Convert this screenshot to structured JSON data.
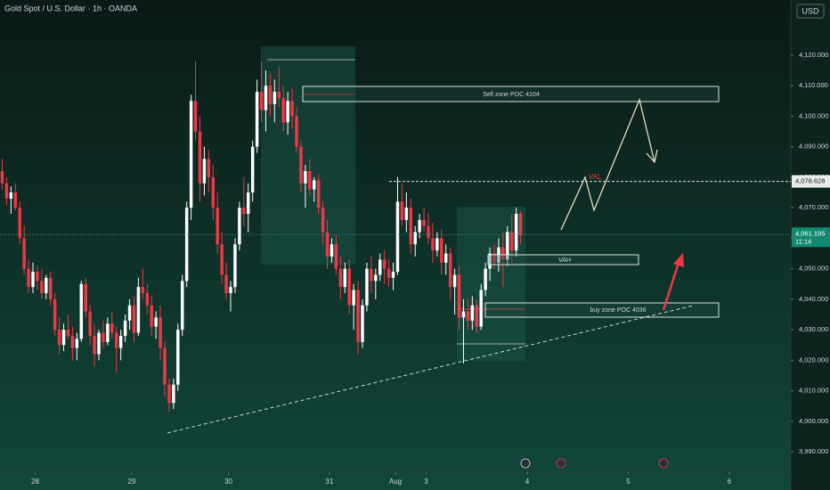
{
  "chart_data": {
    "type": "candlestick",
    "title": "Gold Spot / U.S. Dollar · 1h · OANDA",
    "currency": "USD",
    "up_color": "#ffffff",
    "down_color": "#f23645",
    "ohlc": [
      [
        4082,
        4086,
        4076,
        4078
      ],
      [
        4078,
        4080,
        4071,
        4073
      ],
      [
        4073,
        4077,
        4068,
        4075
      ],
      [
        4075,
        4078,
        4069,
        4070
      ],
      [
        4070,
        4072,
        4058,
        4060
      ],
      [
        4060,
        4064,
        4048,
        4050
      ],
      [
        4050,
        4053,
        4042,
        4044
      ],
      [
        4044,
        4052,
        4042,
        4049
      ],
      [
        4049,
        4051,
        4043,
        4046
      ],
      [
        4046,
        4050,
        4040,
        4042
      ],
      [
        4042,
        4048,
        4040,
        4047
      ],
      [
        4047,
        4049,
        4038,
        4040
      ],
      [
        4040,
        4042,
        4028,
        4030
      ],
      [
        4030,
        4034,
        4022,
        4025
      ],
      [
        4025,
        4032,
        4023,
        4030
      ],
      [
        4030,
        4035,
        4027,
        4028
      ],
      [
        4028,
        4031,
        4020,
        4024
      ],
      [
        4024,
        4029,
        4020,
        4027
      ],
      [
        4027,
        4046,
        4026,
        4045
      ],
      [
        4045,
        4047,
        4034,
        4036
      ],
      [
        4036,
        4038,
        4025,
        4028
      ],
      [
        4028,
        4032,
        4018,
        4022
      ],
      [
        4022,
        4030,
        4020,
        4029
      ],
      [
        4029,
        4033,
        4024,
        4026
      ],
      [
        4026,
        4034,
        4025,
        4032
      ],
      [
        4032,
        4036,
        4027,
        4029
      ],
      [
        4029,
        4031,
        4016,
        4024
      ],
      [
        4024,
        4030,
        4020,
        4028
      ],
      [
        4028,
        4035,
        4026,
        4033
      ],
      [
        4033,
        4040,
        4030,
        4038
      ],
      [
        4038,
        4041,
        4026,
        4029
      ],
      [
        4029,
        4047,
        4028,
        4044
      ],
      [
        4044,
        4050,
        4040,
        4042
      ],
      [
        4042,
        4045,
        4035,
        4038
      ],
      [
        4038,
        4041,
        4028,
        4031
      ],
      [
        4031,
        4036,
        4027,
        4034
      ],
      [
        4034,
        4038,
        4020,
        4024
      ],
      [
        4024,
        4026,
        4008,
        4012
      ],
      [
        4012,
        4014,
        4003,
        4006
      ],
      [
        4006,
        4014,
        4004,
        4012
      ],
      [
        4012,
        4032,
        4010,
        4030
      ],
      [
        4030,
        4048,
        4028,
        4046
      ],
      [
        4046,
        4072,
        4044,
        4070
      ],
      [
        4070,
        4107,
        4066,
        4105
      ],
      [
        4105,
        4118,
        4092,
        4095
      ],
      [
        4095,
        4100,
        4072,
        4078
      ],
      [
        4078,
        4090,
        4074,
        4086
      ],
      [
        4086,
        4089,
        4075,
        4080
      ],
      [
        4080,
        4084,
        4066,
        4070
      ],
      [
        4070,
        4075,
        4055,
        4058
      ],
      [
        4058,
        4062,
        4045,
        4048
      ],
      [
        4048,
        4052,
        4040,
        4042
      ],
      [
        4042,
        4046,
        4036,
        4044
      ],
      [
        4044,
        4060,
        4042,
        4058
      ],
      [
        4058,
        4072,
        4056,
        4070
      ],
      [
        4070,
        4080,
        4064,
        4068
      ],
      [
        4068,
        4078,
        4062,
        4075
      ],
      [
        4075,
        4092,
        4072,
        4090
      ],
      [
        4090,
        4112,
        4088,
        4108
      ],
      [
        4108,
        4118,
        4098,
        4102
      ],
      [
        4102,
        4115,
        4095,
        4110
      ],
      [
        4110,
        4114,
        4100,
        4104
      ],
      [
        4104,
        4112,
        4098,
        4108
      ],
      [
        4108,
        4116,
        4103,
        4106
      ],
      [
        4106,
        4110,
        4095,
        4098
      ],
      [
        4098,
        4108,
        4094,
        4105
      ],
      [
        4105,
        4109,
        4096,
        4100
      ],
      [
        4100,
        4103,
        4088,
        4090
      ],
      [
        4090,
        4092,
        4075,
        4078
      ],
      [
        4078,
        4084,
        4070,
        4082
      ],
      [
        4082,
        4086,
        4074,
        4076
      ],
      [
        4076,
        4080,
        4072,
        4079
      ],
      [
        4079,
        4081,
        4068,
        4070
      ],
      [
        4070,
        4072,
        4058,
        4062
      ],
      [
        4062,
        4066,
        4050,
        4054
      ],
      [
        4054,
        4060,
        4052,
        4058
      ],
      [
        4058,
        4061,
        4048,
        4050
      ],
      [
        4050,
        4054,
        4040,
        4044
      ],
      [
        4044,
        4052,
        4042,
        4050
      ],
      [
        4050,
        4053,
        4035,
        4038
      ],
      [
        4038,
        4045,
        4030,
        4043
      ],
      [
        4043,
        4046,
        4022,
        4026
      ],
      [
        4026,
        4040,
        4024,
        4038
      ],
      [
        4038,
        4052,
        4036,
        4050
      ],
      [
        4050,
        4054,
        4042,
        4046
      ],
      [
        4046,
        4050,
        4040,
        4048
      ],
      [
        4048,
        4055,
        4046,
        4053
      ],
      [
        4053,
        4056,
        4045,
        4050
      ],
      [
        4050,
        4053,
        4044,
        4047
      ],
      [
        4047,
        4052,
        4043,
        4049
      ],
      [
        4049,
        4080,
        4048,
        4072
      ],
      [
        4072,
        4078,
        4064,
        4066
      ],
      [
        4066,
        4075,
        4062,
        4070
      ],
      [
        4070,
        4073,
        4055,
        4058
      ],
      [
        4058,
        4064,
        4054,
        4062
      ],
      [
        4062,
        4068,
        4060,
        4066
      ],
      [
        4066,
        4070,
        4062,
        4064
      ],
      [
        4064,
        4068,
        4058,
        4060
      ],
      [
        4060,
        4065,
        4052,
        4056
      ],
      [
        4056,
        4062,
        4054,
        4060
      ],
      [
        4060,
        4063,
        4048,
        4052
      ],
      [
        4052,
        4058,
        4048,
        4055
      ],
      [
        4055,
        4057,
        4040,
        4044
      ],
      [
        4044,
        4050,
        4035,
        4048
      ],
      [
        4048,
        4051,
        4030,
        4034
      ],
      [
        4034,
        4040,
        4019,
        4036
      ],
      [
        4036,
        4040,
        4030,
        4033
      ],
      [
        4033,
        4041,
        4030,
        4038
      ],
      [
        4038,
        4040,
        4029,
        4031
      ],
      [
        4031,
        4045,
        4030,
        4043
      ],
      [
        4043,
        4052,
        4041,
        4050
      ],
      [
        4050,
        4057,
        4046,
        4055
      ],
      [
        4055,
        4058,
        4050,
        4052
      ],
      [
        4052,
        4060,
        4049,
        4057
      ],
      [
        4057,
        4062,
        4044,
        4053
      ],
      [
        4053,
        4064,
        4051,
        4062
      ],
      [
        4062,
        4068,
        4052,
        4056
      ],
      [
        4056,
        4070,
        4054,
        4068
      ],
      [
        4068,
        4069,
        4058,
        4061
      ]
    ],
    "xlim": [
      0,
      180
    ],
    "xticks": [
      {
        "value": 8,
        "label": "28"
      },
      {
        "value": 30,
        "label": "29"
      },
      {
        "value": 52,
        "label": "30"
      },
      {
        "value": 75,
        "label": "31"
      },
      {
        "value": 90,
        "label": "Aug"
      },
      {
        "value": 97,
        "label": "3"
      },
      {
        "value": 120,
        "label": "4"
      },
      {
        "value": 143,
        "label": "5"
      },
      {
        "value": 166,
        "label": "6"
      }
    ],
    "ylim": [
      3983.3,
      4138.1
    ],
    "yticks": [
      {
        "value": 3990,
        "label": "3,990.000"
      },
      {
        "value": 4000,
        "label": "4,000.000"
      },
      {
        "value": 4010,
        "label": "4,010.000"
      },
      {
        "value": 4020,
        "label": "4,020.000"
      },
      {
        "value": 4030,
        "label": "4,030.000"
      },
      {
        "value": 4040,
        "label": "4,040.000"
      },
      {
        "value": 4050,
        "label": "4,050.000"
      },
      {
        "value": 4060,
        "label": "4,060.000"
      },
      {
        "value": 4070,
        "label": "4,070.000"
      },
      {
        "value": 4080,
        "label": "4,080.000"
      },
      {
        "value": 4090,
        "label": "4,090.000"
      },
      {
        "value": 4100,
        "label": "4,100.000"
      },
      {
        "value": 4110,
        "label": "4,110.000"
      },
      {
        "value": 4120,
        "label": "4,120.000"
      }
    ],
    "price_lines": [
      {
        "value": 4078.628,
        "label": "4,078.628"
      },
      {
        "value": 4061.195,
        "label": "4,061.195",
        "countdown": "11:14"
      }
    ],
    "annotations": [
      "Sell zone POC 4104",
      "VAL",
      "VAH",
      "buy zone POC 4036"
    ]
  }
}
